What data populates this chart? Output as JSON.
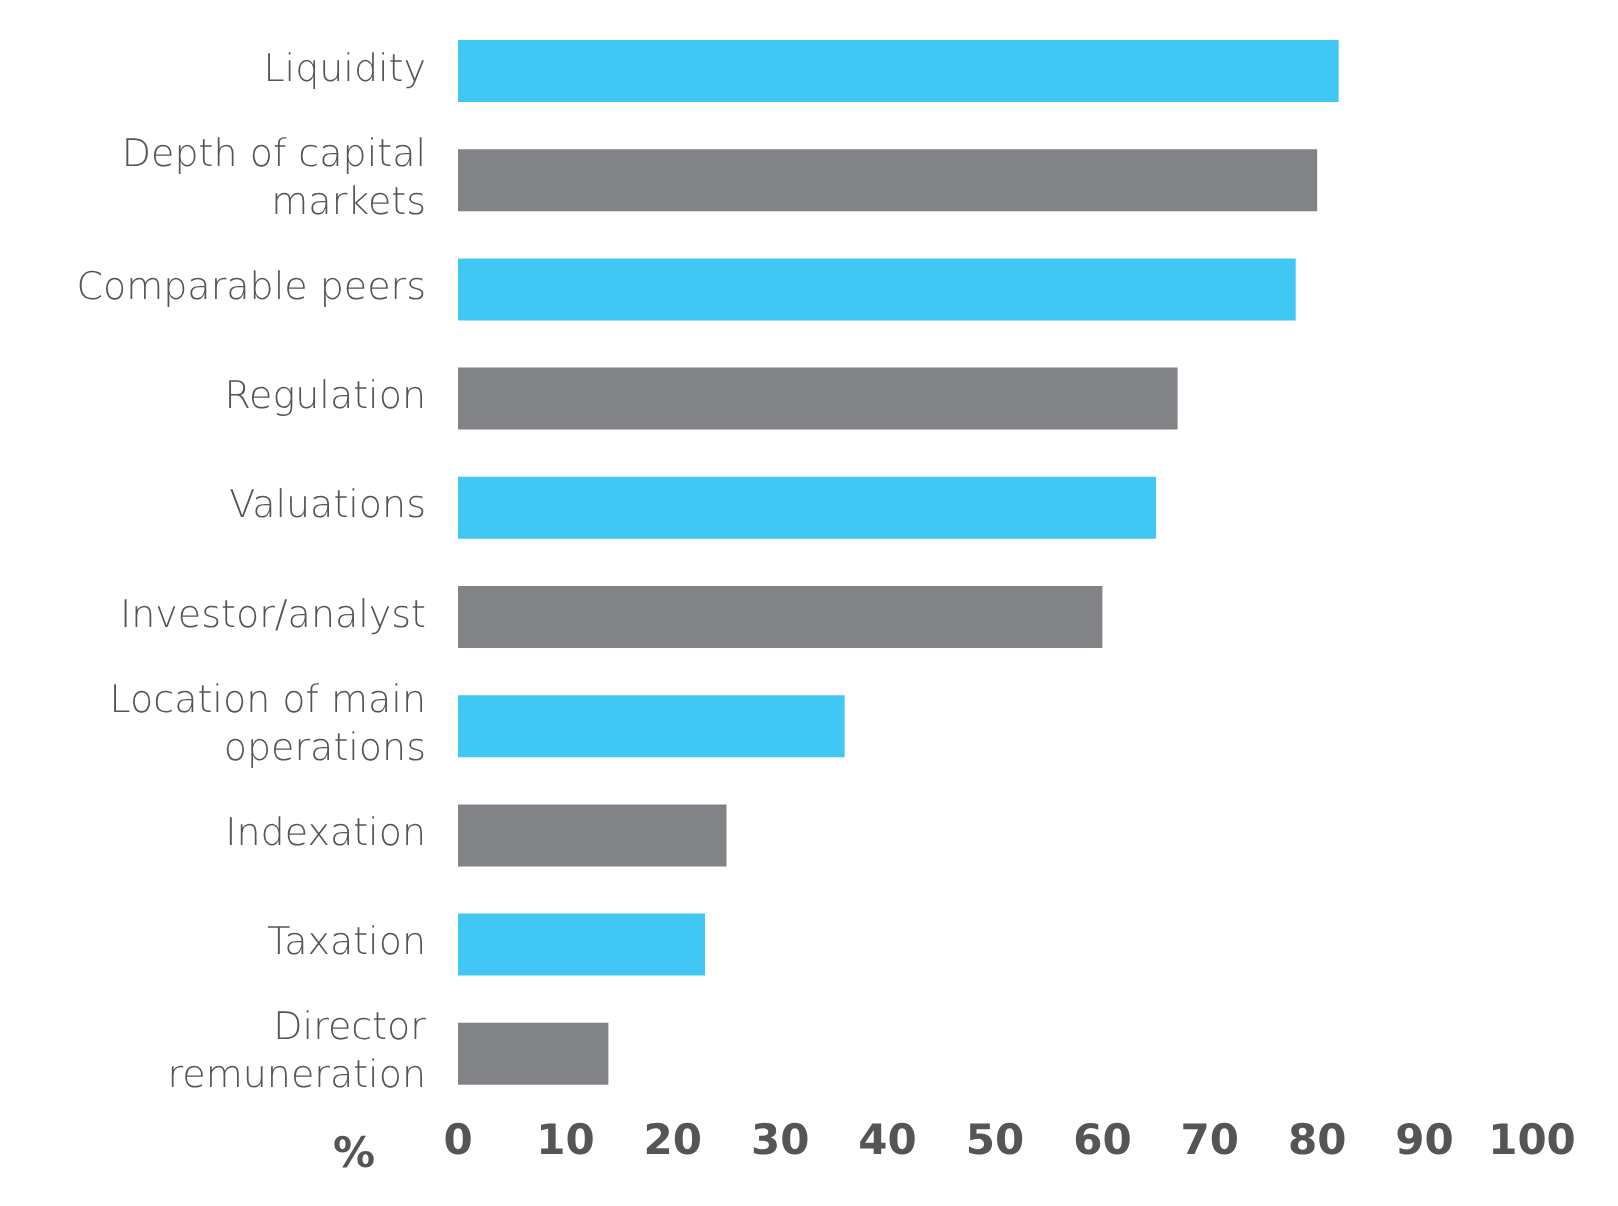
{
  "chart_data": {
    "type": "bar",
    "orientation": "horizontal",
    "xlabel": "%",
    "categories": [
      "Liquidity",
      "Depth of capital markets",
      "Comparable peers",
      "Regulation",
      "Valuations",
      "Investor/analyst",
      "Location of main operations",
      "Indexation",
      "Taxation",
      "Director remuneration"
    ],
    "values": [
      82,
      80,
      78,
      67,
      65,
      60,
      36,
      25,
      23,
      14
    ],
    "colors": [
      "#40c7f4",
      "#828387",
      "#40c7f4",
      "#828387",
      "#40c7f4",
      "#828387",
      "#40c7f4",
      "#828387",
      "#40c7f4",
      "#828387"
    ],
    "xlim": [
      0,
      100
    ],
    "xticks": [
      0,
      10,
      20,
      30,
      40,
      50,
      60,
      70,
      80,
      90,
      100
    ],
    "grid": false,
    "legend": false
  }
}
